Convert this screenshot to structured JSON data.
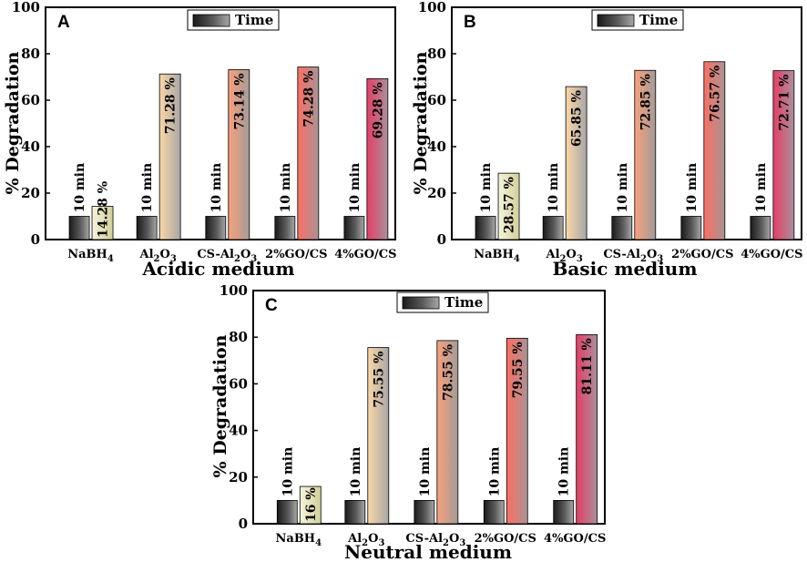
{
  "chart_data": [
    {
      "type": "bar",
      "panel": "A",
      "title": "Acidic medium",
      "ylabel": "% Degradation",
      "ylim": [
        0,
        100
      ],
      "yticks": [
        0,
        20,
        40,
        60,
        80,
        100
      ],
      "legend": "Time",
      "legend_position": "top-center",
      "categories": [
        "NaBH",
        "Al",
        "CS-Al",
        "2%GO/CS",
        "4%GO/CS"
      ],
      "series": [
        {
          "name": "Time",
          "values": [
            10,
            10,
            10,
            10,
            10
          ],
          "labels": [
            "10 min",
            "10 min",
            "10 min",
            "10 min",
            "10 min"
          ]
        },
        {
          "name": "Degradation",
          "values": [
            14.28,
            71.28,
            73.14,
            74.28,
            69.28
          ],
          "labels": [
            "14.28 %",
            "71.28 %",
            "73.14 %",
            "74.28 %",
            "69.28 %"
          ]
        }
      ]
    },
    {
      "type": "bar",
      "panel": "B",
      "title": "Basic medium",
      "ylabel": "% Degradation",
      "ylim": [
        0,
        100
      ],
      "yticks": [
        0,
        20,
        40,
        60,
        80,
        100
      ],
      "legend": "Time",
      "legend_position": "top-center",
      "categories": [
        "NaBH",
        "Al",
        "CS-Al",
        "2%GO/CS",
        "4%GO/CS"
      ],
      "series": [
        {
          "name": "Time",
          "values": [
            10,
            10,
            10,
            10,
            10
          ],
          "labels": [
            "10 min",
            "10 min",
            "10 min",
            "10 min",
            "10 min"
          ]
        },
        {
          "name": "Degradation",
          "values": [
            28.57,
            65.85,
            72.85,
            76.57,
            72.71
          ],
          "labels": [
            "28.57 %",
            "65.85 %",
            "72.85 %",
            "76.57 %",
            "72.71 %"
          ]
        }
      ]
    },
    {
      "type": "bar",
      "panel": "C",
      "title": "Neutral medium",
      "ylabel": "% Degradation",
      "ylim": [
        0,
        100
      ],
      "yticks": [
        0,
        20,
        40,
        60,
        80,
        100
      ],
      "legend": "Time",
      "legend_position": "top-center",
      "categories": [
        "NaBH",
        "Al",
        "CS-Al",
        "2%GO/CS",
        "4%GO/CS"
      ],
      "series": [
        {
          "name": "Time",
          "values": [
            10,
            10,
            10,
            10,
            10
          ],
          "labels": [
            "10 min",
            "10 min",
            "10 min",
            "10 min",
            "10 min"
          ]
        },
        {
          "name": "Degradation",
          "values": [
            16,
            75.55,
            78.55,
            79.55,
            81.11
          ],
          "labels": [
            "16 %",
            "75.55 %",
            "78.55 %",
            "79.55 %",
            "81.11 %"
          ]
        }
      ]
    }
  ],
  "category_subscripts": [
    "4",
    "2O3",
    "2O3",
    "",
    ""
  ],
  "colors": {
    "time_bar": "#555555",
    "degradation_bars": [
      "#f2efc4",
      "#f5b98a",
      "#f3876a",
      "#ef5b63",
      "#d8345d"
    ]
  }
}
